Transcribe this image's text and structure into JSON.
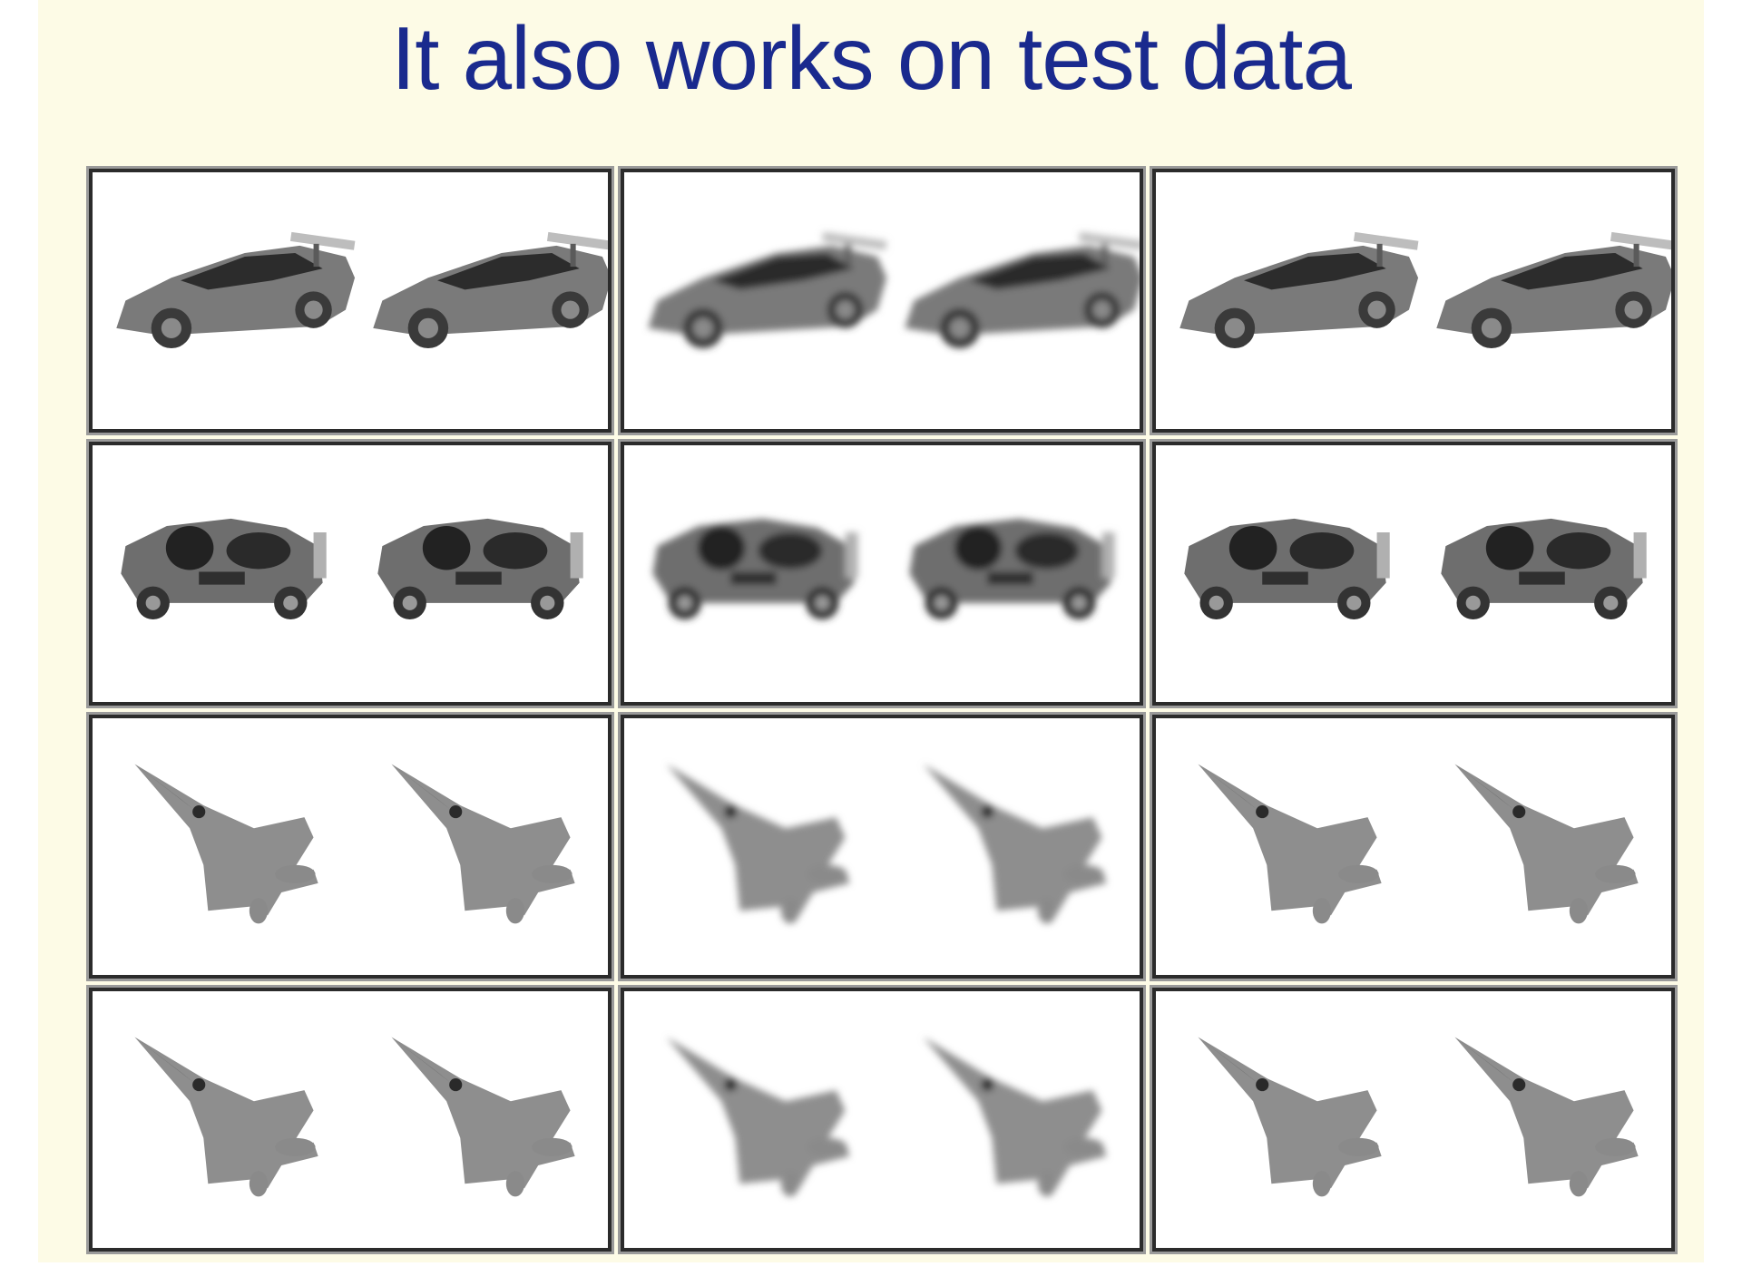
{
  "slide": {
    "title": "It also works on test data",
    "background_color": "#fdfbe6",
    "title_color": "#1a2a8e"
  },
  "panels": [
    {
      "row": 1,
      "col": 1,
      "subject": "sports-car",
      "view": "three-quarter",
      "style": "sharp"
    },
    {
      "row": 1,
      "col": 2,
      "subject": "sports-car",
      "view": "three-quarter",
      "style": "blurry"
    },
    {
      "row": 1,
      "col": 3,
      "subject": "sports-car",
      "view": "three-quarter",
      "style": "sharp"
    },
    {
      "row": 2,
      "col": 1,
      "subject": "sports-car",
      "view": "side",
      "style": "sharp"
    },
    {
      "row": 2,
      "col": 2,
      "subject": "sports-car",
      "view": "side",
      "style": "blurry"
    },
    {
      "row": 2,
      "col": 3,
      "subject": "sports-car",
      "view": "side",
      "style": "sharp"
    },
    {
      "row": 3,
      "col": 1,
      "subject": "fighter-jet",
      "view": "top",
      "style": "sharp"
    },
    {
      "row": 3,
      "col": 2,
      "subject": "fighter-jet",
      "view": "top",
      "style": "blurry"
    },
    {
      "row": 3,
      "col": 3,
      "subject": "fighter-jet",
      "view": "top",
      "style": "sharp"
    },
    {
      "row": 4,
      "col": 1,
      "subject": "fighter-jet",
      "view": "top",
      "style": "sharp"
    },
    {
      "row": 4,
      "col": 2,
      "subject": "fighter-jet",
      "view": "top",
      "style": "blurry"
    },
    {
      "row": 4,
      "col": 3,
      "subject": "fighter-jet",
      "view": "top",
      "style": "sharp"
    }
  ]
}
